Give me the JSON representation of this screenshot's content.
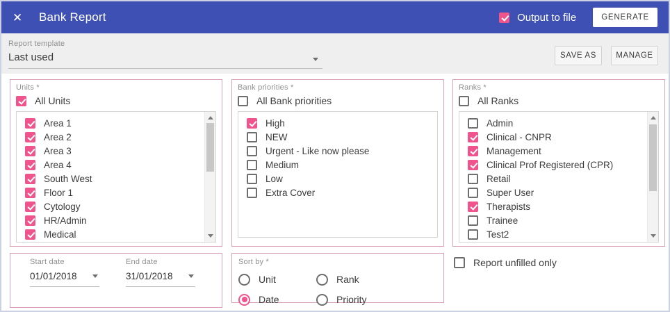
{
  "colors": {
    "header_bg": "#3E50B4",
    "accent_pink": "#F0548C",
    "panel_border": "#D9A0B9"
  },
  "header": {
    "close_icon": "✕",
    "title": "Bank Report",
    "output_to_file": {
      "label": "Output to file",
      "checked": true
    },
    "generate_label": "GENERATE"
  },
  "template_bar": {
    "label": "Report template",
    "value": "Last used",
    "save_as_label": "SAVE AS",
    "manage_label": "MANAGE"
  },
  "units_panel": {
    "label": "Units *",
    "all": {
      "label": "All Units",
      "checked": true
    },
    "items": [
      {
        "label": "Area 1",
        "checked": true
      },
      {
        "label": "Area 2",
        "checked": true
      },
      {
        "label": "Area 3",
        "checked": true
      },
      {
        "label": "Area 4",
        "checked": true
      },
      {
        "label": "South West",
        "checked": true
      },
      {
        "label": "Floor 1",
        "checked": true
      },
      {
        "label": "Cytology",
        "checked": true
      },
      {
        "label": "HR/Admin",
        "checked": true
      },
      {
        "label": "Medical",
        "checked": true
      },
      {
        "label": "",
        "checked": true
      }
    ]
  },
  "priorities_panel": {
    "label": "Bank priorities *",
    "all": {
      "label": "All Bank priorities",
      "checked": false
    },
    "items": [
      {
        "label": "High",
        "checked": true
      },
      {
        "label": "NEW",
        "checked": false
      },
      {
        "label": "Urgent - Like now please",
        "checked": false
      },
      {
        "label": "Medium",
        "checked": false
      },
      {
        "label": "Low",
        "checked": false
      },
      {
        "label": "Extra Cover",
        "checked": false
      }
    ]
  },
  "ranks_panel": {
    "label": "Ranks *",
    "all": {
      "label": "All Ranks",
      "checked": false
    },
    "items": [
      {
        "label": "Admin",
        "checked": false
      },
      {
        "label": "Clinical - CNPR",
        "checked": true
      },
      {
        "label": "Management",
        "checked": true
      },
      {
        "label": "Clinical Prof Registered (CPR)",
        "checked": true
      },
      {
        "label": "Retail",
        "checked": false
      },
      {
        "label": "Super User",
        "checked": false
      },
      {
        "label": "Therapists",
        "checked": true
      },
      {
        "label": "Trainee",
        "checked": false
      },
      {
        "label": "Test2",
        "checked": false
      },
      {
        "label": "",
        "checked": false
      }
    ]
  },
  "dates_panel": {
    "start": {
      "label": "Start date",
      "value": "01/01/2018"
    },
    "end": {
      "label": "End date",
      "value": "31/01/2018"
    }
  },
  "sort_panel": {
    "label": "Sort by *",
    "options": [
      {
        "label": "Unit",
        "selected": false
      },
      {
        "label": "Rank",
        "selected": false
      },
      {
        "label": "Date",
        "selected": true
      },
      {
        "label": "Priority",
        "selected": false
      }
    ]
  },
  "unfilled": {
    "label": "Report unfilled only",
    "checked": false
  }
}
